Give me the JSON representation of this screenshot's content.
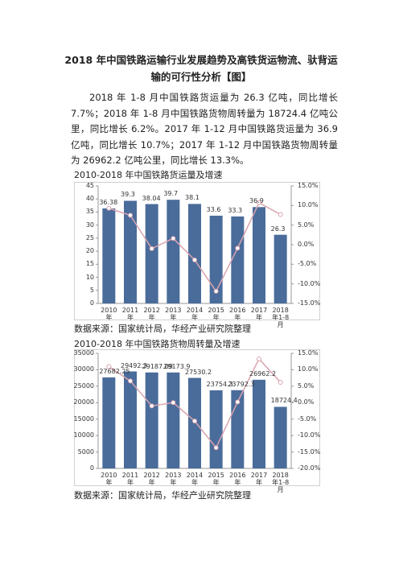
{
  "title": "2018 年中国铁路运输行业发展趋势及高铁货运物流、驮背运输的可行性分析【图】",
  "paragraph": "2018 年 1-8 月中国铁路货运量为 26.3 亿吨，同比增长 7.7%；2018 年 1-8 月中国铁路货物周转量为 18724.4 亿吨公里，同比增长 6.2%。2017 年 1-12 月中国铁路货运量为 36.9 亿吨，同比增长 10.7%；2017 年 1-12 月中国铁路货物周转量为 26962.2 亿吨公里，同比增长 13.3%。",
  "chart_data": [
    {
      "type": "bar",
      "title": "2010-2018 年中国铁路货运量及增速",
      "source": "数据来源：国家统计局，华经产业研究院整理",
      "categories": [
        "2010年",
        "2011年",
        "2012年",
        "2013年",
        "2014年",
        "2015年",
        "2016年",
        "2017年",
        "2018年1-8月"
      ],
      "series": [
        {
          "type": "bar",
          "color": "#4a6c9b",
          "values": [
            36.38,
            39.3,
            38.04,
            39.7,
            38.1,
            33.6,
            33.3,
            36.9,
            26.3
          ]
        },
        {
          "type": "line",
          "axis": "y2",
          "color": "#d9a3ae",
          "values": [
            9.3,
            7.5,
            -1.0,
            1.6,
            -3.9,
            -11.9,
            -0.9,
            10.7,
            7.7
          ]
        }
      ],
      "ylim": [
        0,
        45
      ],
      "yticks": [
        0,
        5,
        10,
        15,
        20,
        25,
        30,
        35,
        40,
        45
      ],
      "y2lim": [
        -15,
        15
      ],
      "y2ticks": [
        {
          "value": -15,
          "label": "-15.0%"
        },
        {
          "value": -10,
          "label": "-10.0%"
        },
        {
          "value": -5,
          "label": "-5.0%"
        },
        {
          "value": 0,
          "label": "0.0%"
        },
        {
          "value": 5,
          "label": "5.0%"
        },
        {
          "value": 10,
          "label": "10.0%"
        },
        {
          "value": 15,
          "label": "15.0%"
        }
      ]
    },
    {
      "type": "bar",
      "title": "2010-2018 年中国铁路货物周转量及增速",
      "source": "数据来源：国家统计局，华经产业研究院整理",
      "categories": [
        "2010年",
        "2011年",
        "2012年",
        "2013年",
        "2014年",
        "2015年",
        "2016年",
        "2017年",
        "2018年1-8月"
      ],
      "series": [
        {
          "type": "bar",
          "color": "#4a6c9b",
          "values": [
            27682.25,
            29492.3,
            29187.09,
            29173.9,
            27530.2,
            23754.3,
            23792.3,
            26962.2,
            18724.4
          ]
        },
        {
          "type": "line",
          "axis": "y2",
          "color": "#d9a3ae",
          "values": [
            11.0,
            6.6,
            -1.0,
            0.0,
            -5.6,
            -13.7,
            0.2,
            13.3,
            6.2
          ]
        }
      ],
      "ylim": [
        0,
        35000
      ],
      "yticks": [
        0,
        5000,
        10000,
        15000,
        20000,
        25000,
        30000,
        35000
      ],
      "y2lim": [
        -20,
        15
      ],
      "y2ticks": [
        {
          "value": -20,
          "label": "-20.0%"
        },
        {
          "value": -15,
          "label": "-15.0%"
        },
        {
          "value": -10,
          "label": "-10.0%"
        },
        {
          "value": -5,
          "label": "-5.0%"
        },
        {
          "value": 0,
          "label": "0.0%"
        },
        {
          "value": 5,
          "label": "5.0%"
        },
        {
          "value": 10,
          "label": "10.0%"
        },
        {
          "value": 15,
          "label": "15.0%"
        }
      ]
    }
  ]
}
